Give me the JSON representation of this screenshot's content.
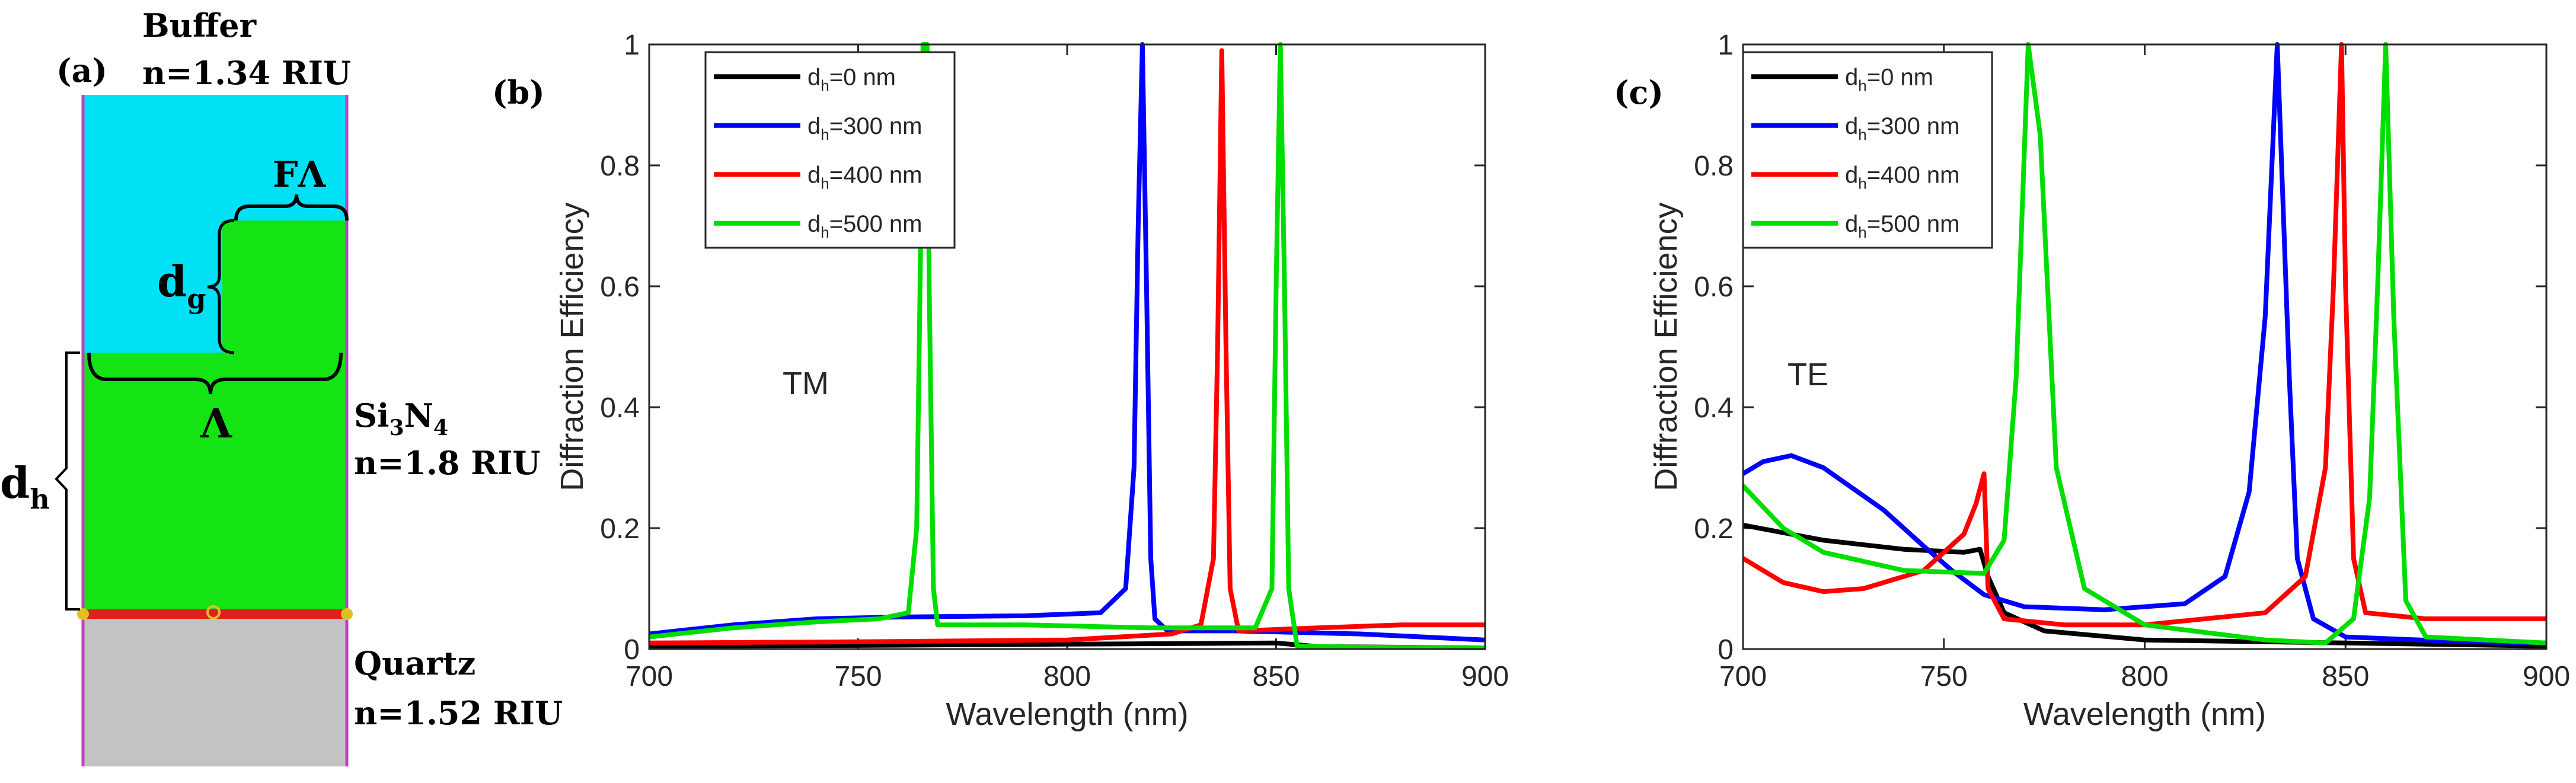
{
  "figure": {
    "panel_a": {
      "label": "(a)",
      "buffer": {
        "name": "Buffer",
        "index": "n=1.34 RIU"
      },
      "core": {
        "name_main": "Si",
        "sub1": "3",
        "name_mid": "N",
        "sub2": "4",
        "index": "n=1.8 RIU"
      },
      "substrate": {
        "name": "Quartz",
        "index": "n=1.52 RIU"
      },
      "dims": {
        "fill": "FΛ",
        "grating_base": "d",
        "grating_sub": "g",
        "period": "Λ",
        "height_base": "d",
        "height_sub": "h"
      },
      "colors": {
        "buffer": "#00E1F5",
        "core": "#14E414",
        "substrate": "#C3C3C3",
        "interface": "#E02020"
      }
    },
    "panel_b": {
      "label": "(b)",
      "annotation": "TM"
    },
    "panel_c": {
      "label": "(c)",
      "annotation": "TE"
    }
  },
  "chart_data": [
    {
      "type": "line",
      "panel": "(b)",
      "title": "",
      "xlabel": "Wavelength (nm)",
      "ylabel": "Diffraction Efficiency",
      "xlim": [
        700,
        900
      ],
      "ylim": [
        0,
        1
      ],
      "xticks": [
        700,
        750,
        800,
        850,
        900
      ],
      "yticks": [
        0,
        0.2,
        0.4,
        0.6,
        0.8,
        1
      ],
      "xtick_labels": [
        "700",
        "750",
        "800",
        "850",
        "900"
      ],
      "ytick_labels": [
        "0",
        "0.2",
        "0.4",
        "0.6",
        "0.8",
        "1"
      ],
      "legend_position": "top-left",
      "annotation": "TM",
      "series": [
        {
          "name": "dh=0 nm",
          "legend_base": "d",
          "legend_sub": "h",
          "legend_rest": "=0 nm",
          "color": "#000000",
          "points": [
            [
              700,
              0.005
            ],
            [
              750,
              0.006
            ],
            [
              800,
              0.008
            ],
            [
              850,
              0.01
            ],
            [
              860,
              0.004
            ],
            [
              900,
              0.002
            ]
          ]
        },
        {
          "name": "dh=300 nm",
          "legend_base": "d",
          "legend_sub": "h",
          "legend_rest": "=300 nm",
          "color": "#0000FF",
          "points": [
            [
              700,
              0.025
            ],
            [
              720,
              0.04
            ],
            [
              740,
              0.05
            ],
            [
              760,
              0.053
            ],
            [
              790,
              0.055
            ],
            [
              808,
              0.06
            ],
            [
              814,
              0.1
            ],
            [
              816,
              0.3
            ],
            [
              817,
              0.7
            ],
            [
              818,
              1.0
            ],
            [
              819,
              0.6
            ],
            [
              820,
              0.15
            ],
            [
              821,
              0.05
            ],
            [
              824,
              0.03
            ],
            [
              840,
              0.03
            ],
            [
              870,
              0.025
            ],
            [
              900,
              0.015
            ]
          ]
        },
        {
          "name": "dh=400 nm",
          "legend_base": "d",
          "legend_sub": "h",
          "legend_rest": "=400 nm",
          "color": "#FF0000",
          "points": [
            [
              700,
              0.01
            ],
            [
              750,
              0.012
            ],
            [
              800,
              0.015
            ],
            [
              825,
              0.025
            ],
            [
              832,
              0.04
            ],
            [
              835,
              0.15
            ],
            [
              836,
              0.5
            ],
            [
              837,
              0.99
            ],
            [
              838,
              0.5
            ],
            [
              839,
              0.1
            ],
            [
              841,
              0.03
            ],
            [
              860,
              0.035
            ],
            [
              880,
              0.04
            ],
            [
              900,
              0.04
            ]
          ]
        },
        {
          "name": "dh=500 nm",
          "legend_base": "d",
          "legend_sub": "h",
          "legend_rest": "=500 nm",
          "color": "#00DD00",
          "points": [
            [
              700,
              0.02
            ],
            [
              720,
              0.035
            ],
            [
              740,
              0.045
            ],
            [
              755,
              0.05
            ],
            [
              762,
              0.06
            ],
            [
              764,
              0.2
            ],
            [
              765,
              0.7
            ],
            [
              765.5,
              1.0
            ],
            [
              766.5,
              1.0
            ],
            [
              767,
              0.6
            ],
            [
              768,
              0.1
            ],
            [
              769,
              0.04
            ],
            [
              790,
              0.04
            ],
            [
              820,
              0.035
            ],
            [
              845,
              0.035
            ],
            [
              849,
              0.1
            ],
            [
              850,
              0.6
            ],
            [
              851,
              1.0
            ],
            [
              852,
              0.6
            ],
            [
              853,
              0.1
            ],
            [
              855,
              0.005
            ],
            [
              870,
              0.003
            ],
            [
              900,
              0.002
            ]
          ]
        }
      ]
    },
    {
      "type": "line",
      "panel": "(c)",
      "title": "",
      "xlabel": "Wavelength (nm)",
      "ylabel": "Diffraction Efficiency",
      "xlim": [
        700,
        900
      ],
      "ylim": [
        0,
        1
      ],
      "xticks": [
        700,
        750,
        800,
        850,
        900
      ],
      "yticks": [
        0,
        0.2,
        0.4,
        0.6,
        0.8,
        1
      ],
      "xtick_labels": [
        "700",
        "750",
        "800",
        "850",
        "900"
      ],
      "ytick_labels": [
        "0",
        "0.2",
        "0.4",
        "0.6",
        "0.8",
        "1"
      ],
      "legend_position": "top-left",
      "annotation": "TE",
      "series": [
        {
          "name": "dh=0 nm",
          "legend_base": "d",
          "legend_sub": "h",
          "legend_rest": "=0 nm",
          "color": "#000000",
          "points": [
            [
              700,
              0.205
            ],
            [
              720,
              0.18
            ],
            [
              740,
              0.165
            ],
            [
              755,
              0.16
            ],
            [
              759,
              0.165
            ],
            [
              761,
              0.12
            ],
            [
              765,
              0.06
            ],
            [
              775,
              0.03
            ],
            [
              800,
              0.015
            ],
            [
              850,
              0.01
            ],
            [
              900,
              0.005
            ]
          ]
        },
        {
          "name": "dh=300 nm",
          "legend_base": "d",
          "legend_sub": "h",
          "legend_rest": "=300 nm",
          "color": "#0000FF",
          "points": [
            [
              700,
              0.29
            ],
            [
              705,
              0.31
            ],
            [
              712,
              0.32
            ],
            [
              720,
              0.3
            ],
            [
              735,
              0.23
            ],
            [
              745,
              0.17
            ],
            [
              752,
              0.13
            ],
            [
              760,
              0.09
            ],
            [
              770,
              0.07
            ],
            [
              790,
              0.065
            ],
            [
              810,
              0.075
            ],
            [
              820,
              0.12
            ],
            [
              826,
              0.26
            ],
            [
              830,
              0.55
            ],
            [
              833,
              1.0
            ],
            [
              836,
              0.45
            ],
            [
              838,
              0.15
            ],
            [
              842,
              0.05
            ],
            [
              850,
              0.02
            ],
            [
              880,
              0.012
            ],
            [
              900,
              0.01
            ]
          ]
        },
        {
          "name": "dh=400 nm",
          "legend_base": "d",
          "legend_sub": "h",
          "legend_rest": "=400 nm",
          "color": "#FF0000",
          "points": [
            [
              700,
              0.15
            ],
            [
              710,
              0.11
            ],
            [
              720,
              0.095
            ],
            [
              730,
              0.1
            ],
            [
              745,
              0.13
            ],
            [
              755,
              0.19
            ],
            [
              758,
              0.24
            ],
            [
              760,
              0.29
            ],
            [
              761,
              0.1
            ],
            [
              765,
              0.05
            ],
            [
              780,
              0.04
            ],
            [
              800,
              0.04
            ],
            [
              830,
              0.06
            ],
            [
              840,
              0.12
            ],
            [
              845,
              0.3
            ],
            [
              847,
              0.6
            ],
            [
              849,
              1.0
            ],
            [
              850,
              0.6
            ],
            [
              852,
              0.15
            ],
            [
              855,
              0.06
            ],
            [
              870,
              0.05
            ],
            [
              900,
              0.05
            ]
          ]
        },
        {
          "name": "dh=500 nm",
          "legend_base": "d",
          "legend_sub": "h",
          "legend_rest": "=500 nm",
          "color": "#00DD00",
          "points": [
            [
              700,
              0.27
            ],
            [
              710,
              0.2
            ],
            [
              720,
              0.16
            ],
            [
              740,
              0.13
            ],
            [
              760,
              0.125
            ],
            [
              765,
              0.18
            ],
            [
              768,
              0.45
            ],
            [
              771,
              1.0
            ],
            [
              774,
              0.85
            ],
            [
              778,
              0.3
            ],
            [
              785,
              0.1
            ],
            [
              800,
              0.04
            ],
            [
              830,
              0.015
            ],
            [
              845,
              0.01
            ],
            [
              852,
              0.05
            ],
            [
              856,
              0.25
            ],
            [
              858,
              0.6
            ],
            [
              860,
              1.0
            ],
            [
              862,
              0.55
            ],
            [
              865,
              0.08
            ],
            [
              870,
              0.02
            ],
            [
              900,
              0.01
            ]
          ]
        }
      ]
    }
  ]
}
